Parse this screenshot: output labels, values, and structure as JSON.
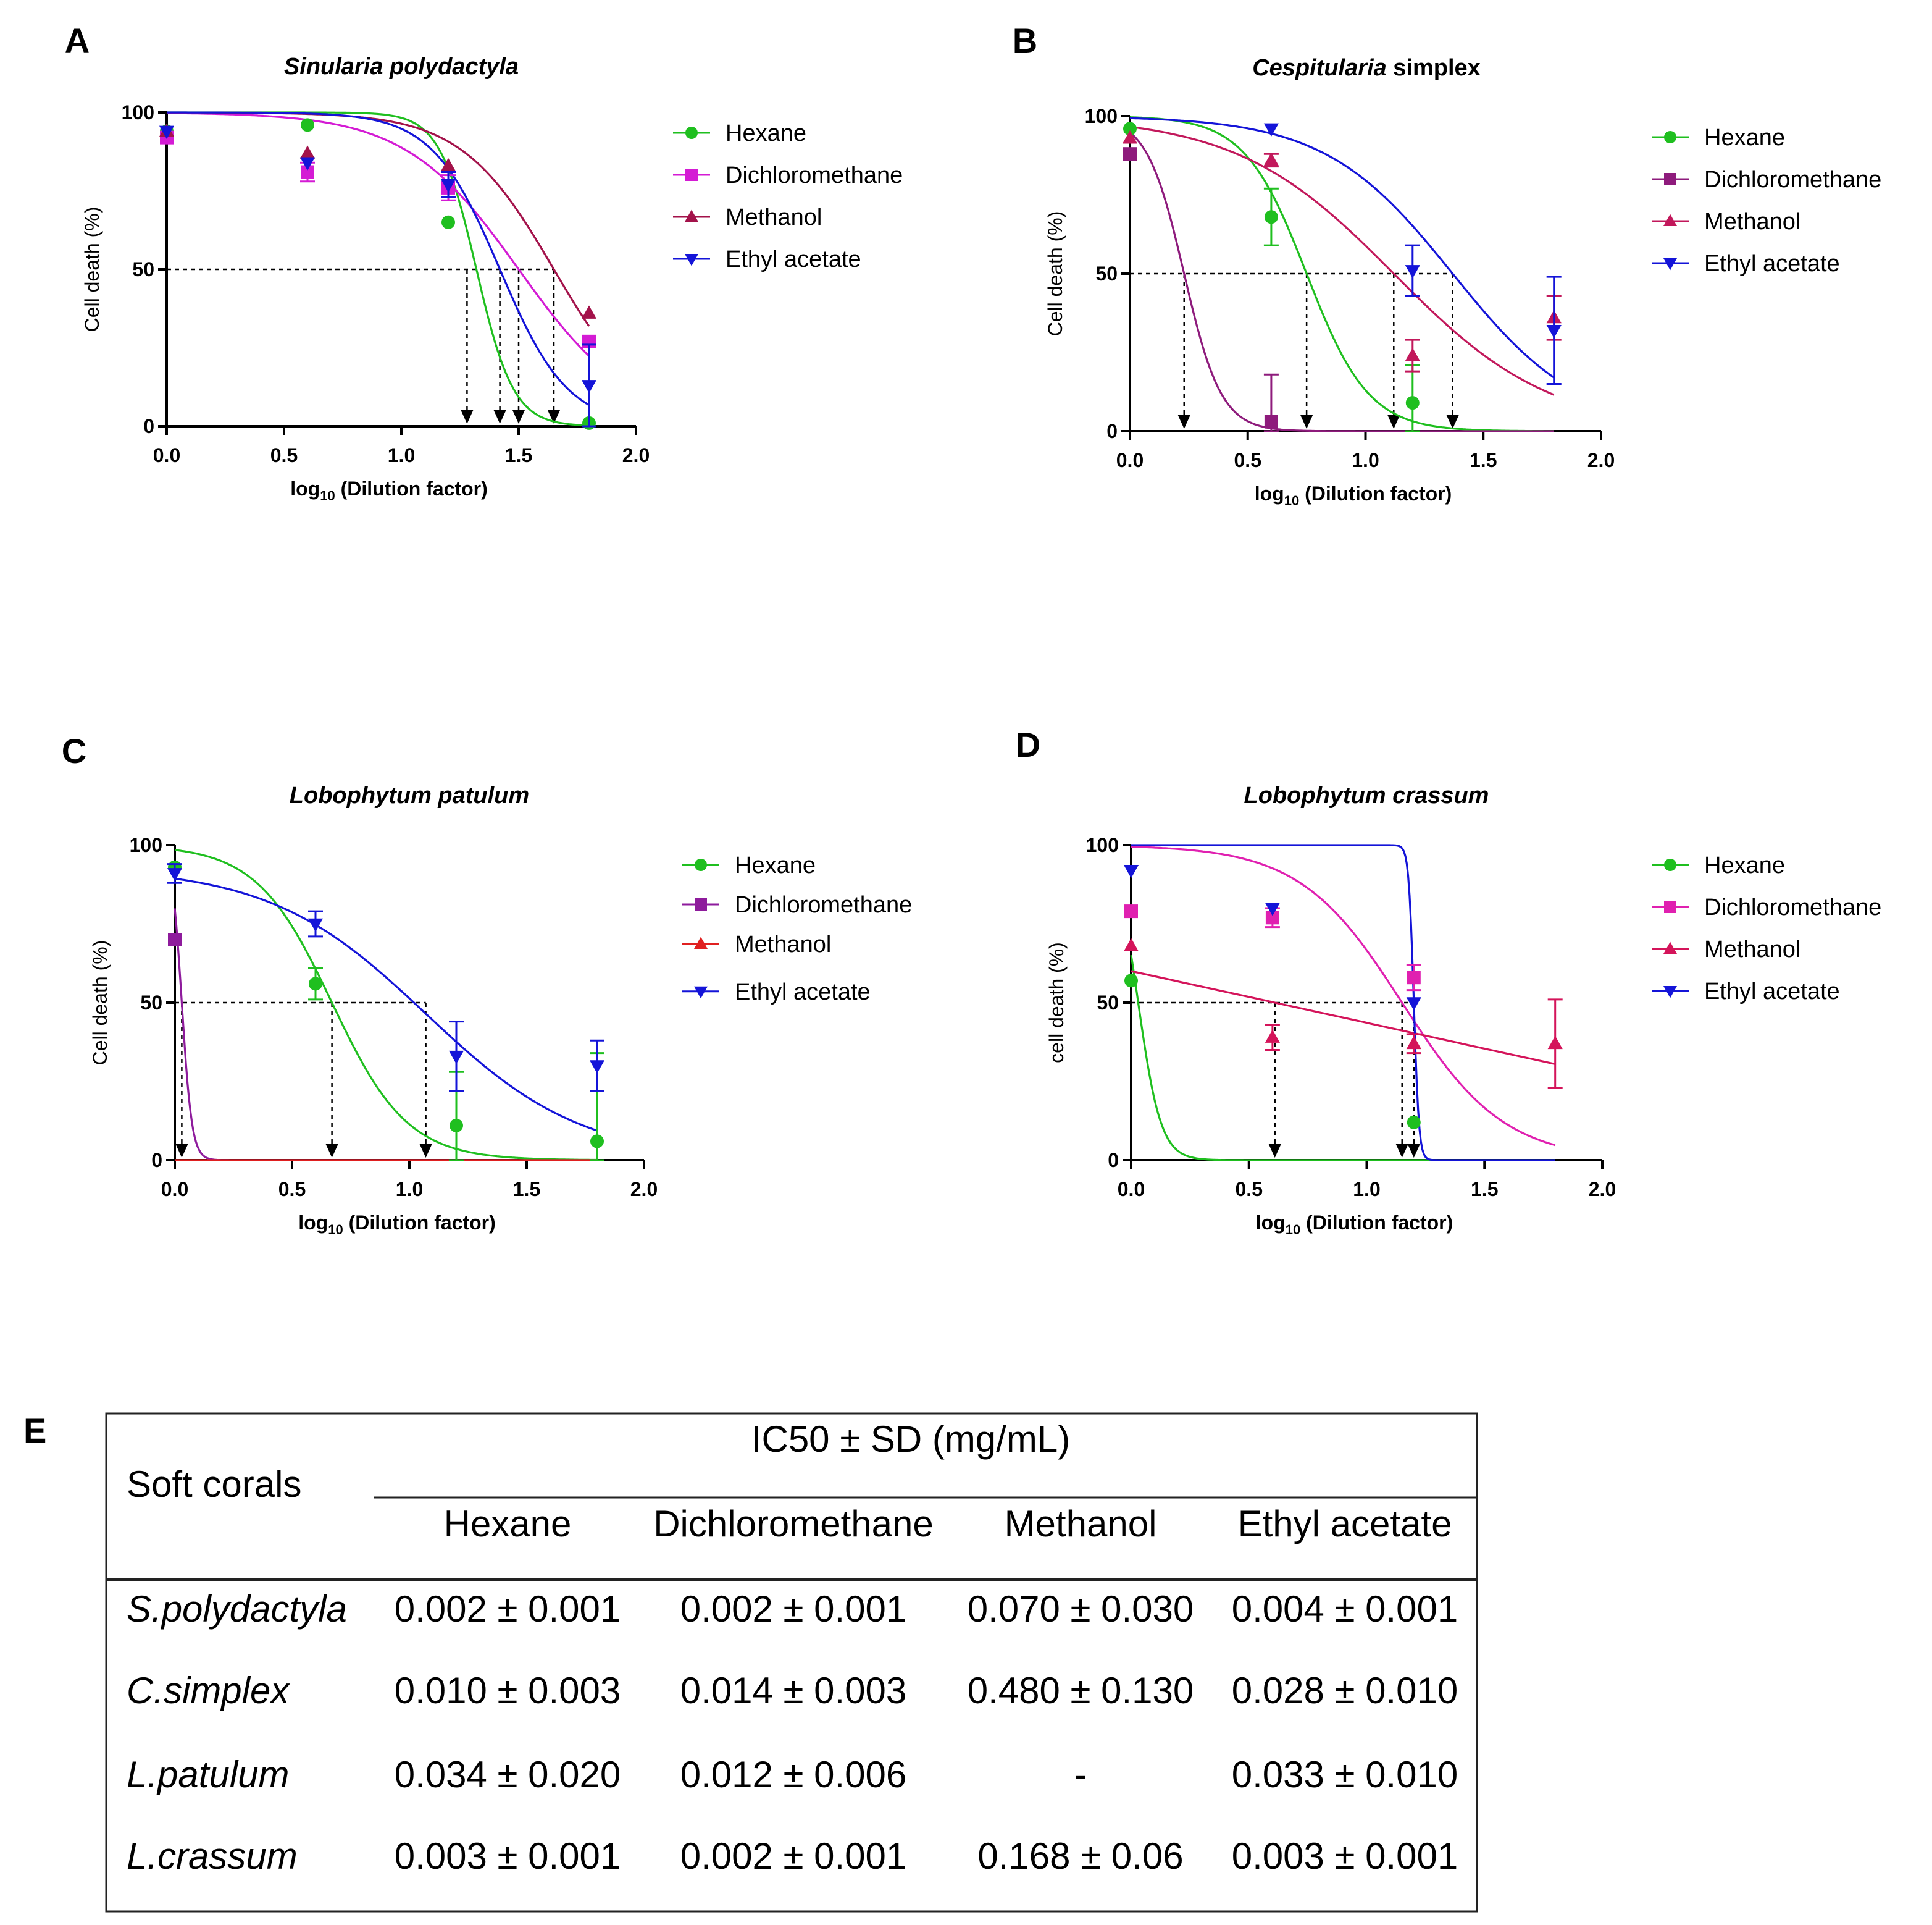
{
  "chart_data": [
    {
      "panel": "A",
      "type": "line",
      "title": "Sinularia polydactyla",
      "title_parts": [
        {
          "text": "Sinularia polydactyla",
          "italic": true
        }
      ],
      "ylabel": "Cell death (%)",
      "xlabel": {
        "main": "log",
        "sub": "10",
        "rest": " (Dilution factor)"
      },
      "xlim": [
        0,
        2.0
      ],
      "ylim": [
        0,
        100
      ],
      "xticks": [
        "0.0",
        "0.5",
        "1.0",
        "1.5",
        "2.0"
      ],
      "yticks": [
        "0",
        "50",
        "100"
      ],
      "ic50_x": [
        1.28,
        1.42,
        1.5,
        1.65
      ],
      "legend_position": "right",
      "series": [
        {
          "name": "Hexane",
          "color": "#1fbf1f",
          "marker": "circle",
          "points": [
            {
              "x": 0.0,
              "y": 94
            },
            {
              "x": 0.6,
              "y": 96
            },
            {
              "x": 1.2,
              "y": 65
            },
            {
              "x": 1.8,
              "y": 1
            }
          ],
          "curve": {
            "ec50": 1.32,
            "hill": -5.5
          }
        },
        {
          "name": "Dichloromethane",
          "color": "#d41bd4",
          "marker": "square",
          "points": [
            {
              "x": 0.0,
              "y": 92
            },
            {
              "x": 0.6,
              "y": 81,
              "err": 3
            },
            {
              "x": 1.2,
              "y": 76,
              "err": 4
            },
            {
              "x": 1.8,
              "y": 27
            }
          ],
          "curve": {
            "ec50": 1.5,
            "hill": -1.8
          }
        },
        {
          "name": "Methanol",
          "color": "#a3124a",
          "marker": "triangle-up",
          "points": [
            {
              "x": 0.0,
              "y": 94
            },
            {
              "x": 0.6,
              "y": 87
            },
            {
              "x": 1.2,
              "y": 83
            },
            {
              "x": 1.8,
              "y": 36
            }
          ],
          "curve": {
            "ec50": 1.65,
            "hill": -2.2
          }
        },
        {
          "name": "Ethyl acetate",
          "color": "#1414d8",
          "marker": "triangle-down",
          "points": [
            {
              "x": 0.0,
              "y": 94
            },
            {
              "x": 0.6,
              "y": 84
            },
            {
              "x": 1.2,
              "y": 77,
              "err": 4
            },
            {
              "x": 1.8,
              "y": 13,
              "err": 13
            }
          ],
          "curve": {
            "ec50": 1.42,
            "hill": -3.0
          }
        }
      ]
    },
    {
      "panel": "B",
      "type": "line",
      "title": "Cespitularia simplex",
      "title_parts": [
        {
          "text": "Cespitularia",
          "italic": true
        },
        {
          "text": " simplex",
          "italic": false
        }
      ],
      "ylabel": "Cell death (%)",
      "xlabel": {
        "main": "log",
        "sub": "10",
        "rest": " (Dilution factor)"
      },
      "xlim": [
        0,
        2.0
      ],
      "ylim": [
        0,
        100
      ],
      "xticks": [
        "0.0",
        "0.5",
        "1.0",
        "1.5",
        "2.0"
      ],
      "yticks": [
        "0",
        "50",
        "100"
      ],
      "ic50_x": [
        0.23,
        0.75,
        1.12,
        1.37
      ],
      "legend_position": "right",
      "series": [
        {
          "name": "Hexane",
          "color": "#1fbf1f",
          "marker": "circle",
          "points": [
            {
              "x": 0.0,
              "y": 96
            },
            {
              "x": 0.6,
              "y": 68,
              "err": 9
            },
            {
              "x": 1.2,
              "y": 9,
              "err": 12
            }
          ],
          "curve": {
            "ec50": 0.75,
            "hill": -3.3
          }
        },
        {
          "name": "Dichloromethane",
          "color": "#8e1b7c",
          "marker": "square",
          "points": [
            {
              "x": 0.0,
              "y": 88
            },
            {
              "x": 0.6,
              "y": 3,
              "err": 15
            }
          ],
          "curve": {
            "ec50": 0.23,
            "hill": -5.5
          }
        },
        {
          "name": "Methanol",
          "color": "#c2185b",
          "marker": "triangle-up",
          "points": [
            {
              "x": 0.0,
              "y": 93
            },
            {
              "x": 0.6,
              "y": 86,
              "err": 2
            },
            {
              "x": 1.2,
              "y": 24,
              "err": 5
            },
            {
              "x": 1.8,
              "y": 36,
              "err": 7
            }
          ],
          "curve": {
            "ec50": 1.12,
            "hill": -1.3
          }
        },
        {
          "name": "Ethyl acetate",
          "color": "#1414d8",
          "marker": "triangle-down",
          "points": [
            {
              "x": 0.6,
              "y": 96
            },
            {
              "x": 1.2,
              "y": 51,
              "err": 8
            },
            {
              "x": 1.8,
              "y": 32,
              "err": 17
            }
          ],
          "curve": {
            "ec50": 1.37,
            "hill": -1.6
          }
        }
      ]
    },
    {
      "panel": "C",
      "type": "line",
      "title": "Lobophytum patulum",
      "title_parts": [
        {
          "text": "Lobophytum patulum",
          "italic": true
        }
      ],
      "ylabel": "Cell death (%)",
      "xlabel": {
        "main": "log",
        "sub": "10",
        "rest": " (Dilution factor)"
      },
      "xlim": [
        0,
        2.0
      ],
      "ylim": [
        0,
        100
      ],
      "xticks": [
        "0.0",
        "0.5",
        "1.0",
        "1.5",
        "2.0"
      ],
      "yticks": [
        "0",
        "50",
        "100"
      ],
      "ic50_x": [
        0.03,
        0.67,
        1.07
      ],
      "legend_position": "right",
      "series": [
        {
          "name": "Hexane",
          "color": "#1fbf1f",
          "marker": "circle",
          "points": [
            {
              "x": 0.0,
              "y": 93
            },
            {
              "x": 0.6,
              "y": 56,
              "err": 5
            },
            {
              "x": 1.2,
              "y": 11,
              "err": 17
            },
            {
              "x": 1.8,
              "y": 6,
              "err": 28
            }
          ],
          "curve": {
            "ec50": 0.67,
            "hill": -2.7
          }
        },
        {
          "name": "Dichloromethane",
          "color": "#8e1b9c",
          "marker": "square",
          "points": [
            {
              "x": 0.0,
              "y": 70
            }
          ],
          "curve": {
            "ec50": 0.03,
            "hill": -20,
            "top": 100,
            "xstart": 0.0
          }
        },
        {
          "name": "Methanol",
          "color": "#e02020",
          "marker": "triangle-up",
          "points": [],
          "curve": {
            "flat": 0
          }
        },
        {
          "name": "Ethyl acetate",
          "color": "#1414d8",
          "marker": "triangle-down",
          "points": [
            {
              "x": 0.0,
              "y": 91,
              "err": 3
            },
            {
              "x": 0.6,
              "y": 75,
              "err": 4
            },
            {
              "x": 1.2,
              "y": 33,
              "err": 11
            },
            {
              "x": 1.8,
              "y": 30,
              "err": 8
            }
          ],
          "curve": {
            "ec50": 1.07,
            "hill": -1.3,
            "top": 93
          }
        }
      ]
    },
    {
      "panel": "D",
      "type": "line",
      "title": "Lobophytum crassum",
      "title_parts": [
        {
          "text": "Lobophytum crassum",
          "italic": true
        }
      ],
      "ylabel": "cell death (%)",
      "xlabel": {
        "main": "log",
        "sub": "10",
        "rest": " (Dilution factor)"
      },
      "xlim": [
        0,
        2.0
      ],
      "ylim": [
        0,
        100
      ],
      "xticks": [
        "0.0",
        "0.5",
        "1.0",
        "1.5",
        "2.0"
      ],
      "yticks": [
        "0",
        "50",
        "100"
      ],
      "ic50_x": [
        0.61,
        1.15,
        1.2
      ],
      "legend_position": "right",
      "series": [
        {
          "name": "Hexane",
          "color": "#1fbf1f",
          "marker": "circle",
          "points": [
            {
              "x": 0.0,
              "y": 57
            },
            {
              "x": 1.2,
              "y": 12
            }
          ],
          "curve": {
            "ec50": 0.03,
            "hill": -9,
            "top": 100
          }
        },
        {
          "name": "Dichloromethane",
          "color": "#e020b0",
          "marker": "square",
          "points": [
            {
              "x": 0.0,
              "y": 79
            },
            {
              "x": 0.6,
              "y": 77,
              "err": 3
            },
            {
              "x": 1.2,
              "y": 58,
              "err": 4
            }
          ],
          "curve": {
            "ec50": 1.15,
            "hill": -2.0
          }
        },
        {
          "name": "Methanol",
          "color": "#d4145a",
          "marker": "triangle-up",
          "points": [
            {
              "x": 0.0,
              "y": 68
            },
            {
              "x": 0.6,
              "y": 39,
              "err": 4
            },
            {
              "x": 1.2,
              "y": 37,
              "err": 3
            },
            {
              "x": 1.8,
              "y": 37,
              "err": 14
            }
          ],
          "curve": {
            "linear": [
              60,
              30.5
            ],
            "xend": 1.8
          }
        },
        {
          "name": "Ethyl acetate",
          "color": "#1414d8",
          "marker": "triangle-down",
          "points": [
            {
              "x": 0.0,
              "y": 92
            },
            {
              "x": 0.6,
              "y": 80
            },
            {
              "x": 1.2,
              "y": 50
            }
          ],
          "curve": {
            "ec50": 1.2,
            "hill": -40,
            "xend": 1.8
          }
        }
      ]
    },
    {
      "panel": "E",
      "type": "table",
      "header_group": "IC50 ± SD (mg/mL)",
      "row_header_label": "Soft corals",
      "columns": [
        "Hexane",
        "Dichloromethane",
        "Methanol",
        "Ethyl acetate"
      ],
      "rows": [
        {
          "label": "S.polydactyla",
          "values": [
            "0.002  ± 0.001",
            "0.002 ± 0.001",
            "0.070 ± 0.030",
            "0.004  ± 0.001"
          ]
        },
        {
          "label": "C.simplex",
          "values": [
            "0.010 ± 0.003",
            "0.014 ± 0.003",
            "0.480 ± 0.130",
            "0.028  ± 0.010"
          ]
        },
        {
          "label": "L.patulum",
          "values": [
            "0.034 ± 0.020",
            "0.012 ± 0.006",
            "-",
            "0.033  ± 0.010"
          ]
        },
        {
          "label": "L.crassum",
          "values": [
            "0.003 ± 0.001",
            "0.002 ± 0.001",
            "0.168 ± 0.06",
            "0.003  ± 0.001"
          ]
        }
      ]
    }
  ]
}
